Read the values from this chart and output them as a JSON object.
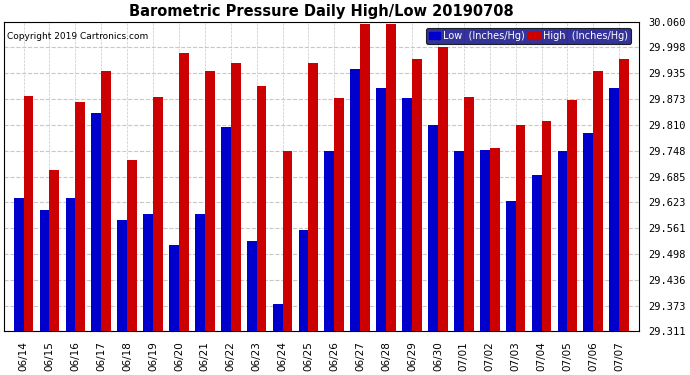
{
  "title": "Barometric Pressure Daily High/Low 20190708",
  "copyright": "Copyright 2019 Cartronics.com",
  "legend_low": "Low  (Inches/Hg)",
  "legend_high": "High  (Inches/Hg)",
  "categories": [
    "06/14",
    "06/15",
    "06/16",
    "06/17",
    "06/18",
    "06/19",
    "06/20",
    "06/21",
    "06/22",
    "06/23",
    "06/24",
    "06/25",
    "06/26",
    "06/27",
    "06/28",
    "06/29",
    "06/30",
    "07/01",
    "07/02",
    "07/03",
    "07/04",
    "07/05",
    "07/06",
    "07/07"
  ],
  "low_values": [
    29.633,
    29.605,
    29.633,
    29.84,
    29.58,
    29.595,
    29.52,
    29.595,
    29.805,
    29.53,
    29.378,
    29.555,
    29.748,
    29.945,
    29.9,
    29.875,
    29.81,
    29.748,
    29.75,
    29.625,
    29.69,
    29.748,
    29.79,
    29.9
  ],
  "high_values": [
    29.88,
    29.7,
    29.865,
    29.94,
    29.725,
    29.878,
    29.985,
    29.94,
    29.96,
    29.905,
    29.748,
    29.96,
    29.875,
    30.055,
    30.055,
    29.97,
    29.998,
    29.878,
    29.755,
    29.81,
    29.82,
    29.87,
    29.94,
    29.97
  ],
  "ylim_min": 29.311,
  "ylim_max": 30.06,
  "yticks": [
    29.311,
    29.373,
    29.436,
    29.498,
    29.561,
    29.623,
    29.685,
    29.748,
    29.81,
    29.873,
    29.935,
    29.998,
    30.06
  ],
  "low_color": "#0000cc",
  "high_color": "#cc0000",
  "bg_color": "#ffffff",
  "grid_color": "#c8c8c8",
  "figsize": [
    6.9,
    3.75
  ],
  "dpi": 100
}
